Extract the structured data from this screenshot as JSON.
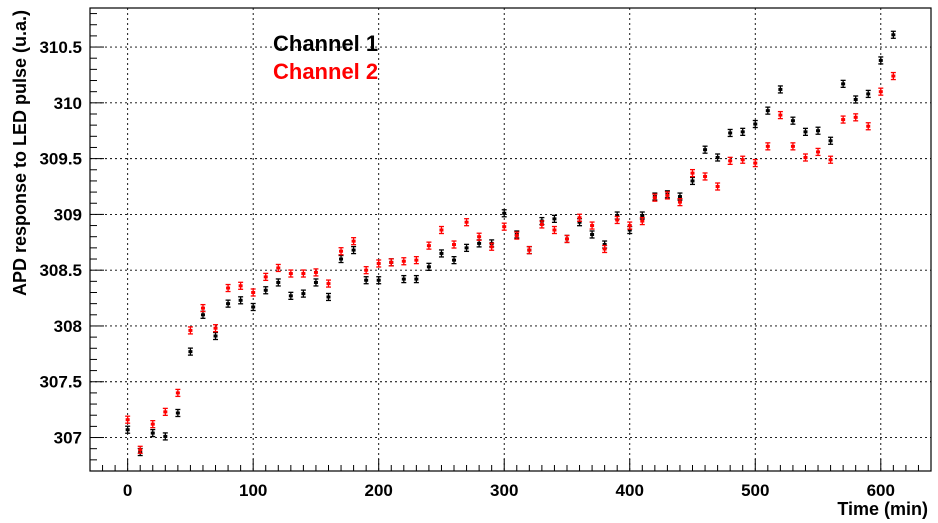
{
  "chart_data": {
    "type": "scatter",
    "title": "",
    "xlabel": "Time (min)",
    "ylabel": "APD response to LED pulse (u.a.)",
    "xlim": [
      -30,
      640
    ],
    "ylim": [
      306.7,
      310.85
    ],
    "xticks": [
      0,
      100,
      200,
      300,
      400,
      500,
      600
    ],
    "xtick_labels": [
      "0",
      "100",
      "200",
      "300",
      "400",
      "500",
      "600"
    ],
    "yticks": [
      307,
      307.5,
      308,
      308.5,
      309,
      309.5,
      310,
      310.5
    ],
    "ytick_labels": [
      "307",
      "307.5",
      "308",
      "308.5",
      "309",
      "309.5",
      "310",
      "310.5"
    ],
    "grid": true,
    "legend_placement": "top-left",
    "series": [
      {
        "name": "Channel 1",
        "color": "#000000",
        "x": [
          0,
          10,
          20,
          30,
          40,
          50,
          60,
          70,
          80,
          90,
          100,
          110,
          120,
          130,
          140,
          150,
          160,
          170,
          180,
          190,
          200,
          210,
          220,
          230,
          240,
          250,
          260,
          270,
          280,
          290,
          300,
          310,
          320,
          330,
          340,
          350,
          360,
          370,
          380,
          390,
          400,
          410,
          420,
          430,
          440,
          450,
          460,
          470,
          480,
          490,
          500,
          510,
          520,
          530,
          540,
          550,
          560,
          570,
          580,
          590,
          600,
          610
        ],
        "y": [
          307.07,
          306.87,
          307.04,
          307.01,
          307.22,
          307.77,
          308.1,
          307.91,
          308.2,
          308.23,
          308.17,
          308.32,
          308.39,
          308.27,
          308.29,
          308.39,
          308.26,
          308.6,
          308.68,
          308.41,
          308.41,
          308.57,
          308.42,
          308.42,
          308.53,
          308.65,
          308.59,
          308.7,
          308.74,
          308.74,
          309.01,
          308.82,
          308.68,
          308.94,
          308.96,
          308.78,
          308.93,
          308.82,
          308.73,
          308.99,
          308.86,
          308.99,
          309.16,
          309.18,
          309.16,
          309.3,
          309.58,
          309.51,
          309.73,
          309.74,
          309.81,
          309.93,
          310.12,
          309.84,
          309.74,
          309.75,
          309.66,
          310.17,
          310.03,
          310.08,
          310.38,
          310.61
        ]
      },
      {
        "name": "Channel 2",
        "color": "#ff0000",
        "x": [
          0,
          10,
          20,
          30,
          40,
          50,
          60,
          70,
          80,
          90,
          100,
          110,
          120,
          130,
          140,
          150,
          160,
          170,
          180,
          190,
          200,
          210,
          220,
          230,
          240,
          250,
          260,
          270,
          280,
          290,
          300,
          310,
          320,
          330,
          340,
          350,
          360,
          370,
          380,
          390,
          400,
          410,
          420,
          430,
          440,
          450,
          460,
          470,
          480,
          490,
          500,
          510,
          520,
          530,
          540,
          550,
          560,
          570,
          580,
          590,
          600,
          610
        ],
        "y": [
          307.16,
          306.89,
          307.12,
          307.23,
          307.4,
          307.96,
          308.16,
          307.98,
          308.34,
          308.36,
          308.3,
          308.44,
          308.52,
          308.47,
          308.47,
          308.48,
          308.38,
          308.67,
          308.76,
          308.5,
          308.56,
          308.57,
          308.58,
          308.59,
          308.72,
          308.86,
          308.73,
          308.93,
          308.8,
          308.71,
          308.89,
          308.81,
          308.68,
          308.91,
          308.86,
          308.78,
          308.97,
          308.9,
          308.69,
          308.95,
          308.9,
          308.94,
          309.15,
          309.17,
          309.11,
          309.37,
          309.34,
          309.25,
          309.48,
          309.49,
          309.46,
          309.61,
          309.89,
          309.61,
          309.51,
          309.56,
          309.49,
          309.85,
          309.87,
          309.79,
          310.1,
          310.24
        ]
      }
    ]
  }
}
